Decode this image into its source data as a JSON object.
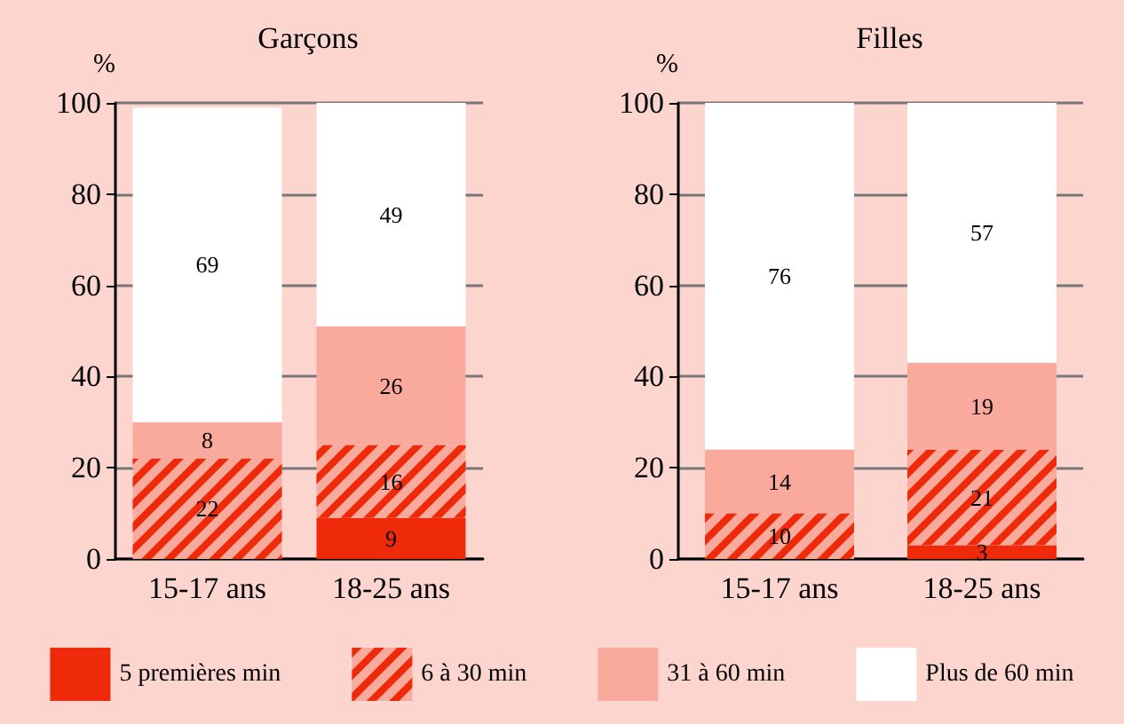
{
  "chart_data": [
    {
      "type": "bar",
      "title": "Garçons",
      "ylabel": "%",
      "categories": [
        "15-17 ans",
        "18-25 ans"
      ],
      "stacked": true,
      "ylim": [
        0,
        100
      ],
      "yticks": [
        0,
        20,
        40,
        60,
        80,
        100
      ],
      "grid": "y",
      "legend": "bottom",
      "series": [
        {
          "name": "5 premières min",
          "color": "#ee2a0a",
          "values": [
            0,
            9
          ],
          "value_labels": [
            null,
            "9"
          ]
        },
        {
          "name": "6 à 30 min",
          "color": "#ee2a0a",
          "values": [
            22,
            16
          ],
          "value_labels": [
            "22",
            "16"
          ]
        },
        {
          "name": "31 à 60 min",
          "color": "#f9aa9c",
          "values": [
            8,
            26
          ],
          "value_labels": [
            "8",
            "26"
          ]
        },
        {
          "name": "Plus de 60 min",
          "color": "#ffffff",
          "values": [
            69,
            49
          ],
          "value_labels": [
            "69",
            "49"
          ]
        }
      ]
    },
    {
      "type": "bar",
      "title": "Filles",
      "ylabel": "%",
      "categories": [
        "15-17 ans",
        "18-25 ans"
      ],
      "stacked": true,
      "ylim": [
        0,
        100
      ],
      "yticks": [
        0,
        20,
        40,
        60,
        80,
        100
      ],
      "grid": "y",
      "series": [
        {
          "color": "#ee2a0a",
          "values": [
            0,
            3
          ],
          "value_labels": [
            null,
            "3"
          ]
        },
        {
          "color": "#ee2a0a",
          "values": [
            10,
            21
          ],
          "value_labels": [
            "10",
            "21"
          ]
        },
        {
          "color": "#f9aa9c",
          "values": [
            14,
            19
          ],
          "value_labels": [
            "14",
            "19"
          ]
        },
        {
          "color": "#ffffff",
          "values": [
            76,
            57
          ],
          "value_labels": [
            "76",
            "57"
          ]
        }
      ]
    }
  ]
}
